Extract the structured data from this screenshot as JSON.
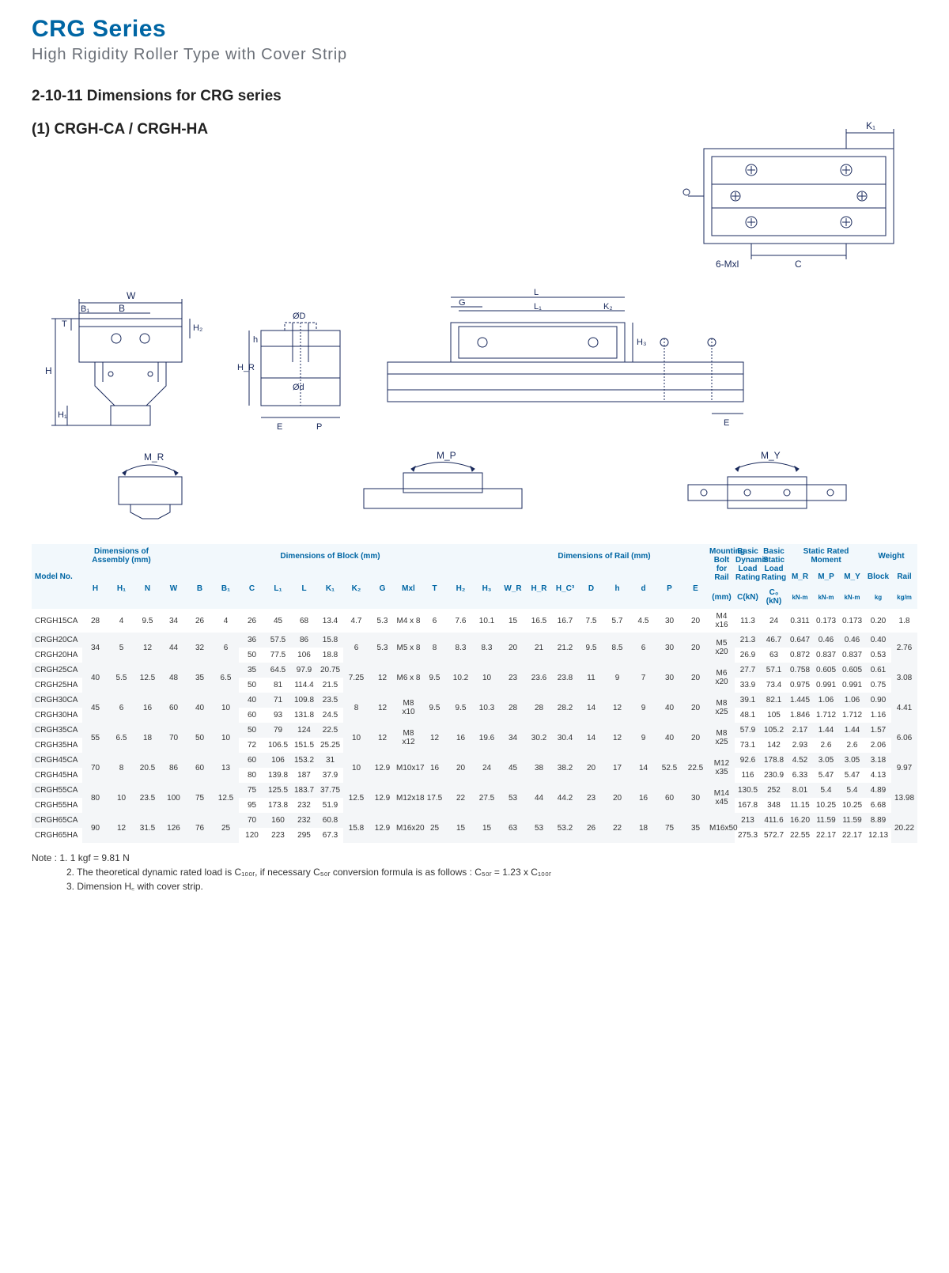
{
  "header": {
    "title": "CRG Series",
    "subtitle": "High Rigidity Roller Type with Cover Strip"
  },
  "section": {
    "heading": "2-10-11 Dimensions for CRG series",
    "sub": "(1) CRGH-CA / CRGH-HA"
  },
  "diagram_labels": {
    "top": {
      "K1": "K₁",
      "C": "C",
      "Mxl": "6-Mxl"
    },
    "front": {
      "W": "W",
      "B1": "B₁",
      "B": "B",
      "H": "H",
      "H1": "H₁",
      "H2": "H₂",
      "T": "T",
      "N": "N"
    },
    "rail_side": {
      "OD": "ØD",
      "Od": "Ød",
      "h": "h",
      "HR": "H_R",
      "HC": "H_C",
      "E": "E",
      "P": "P"
    },
    "side": {
      "G": "G",
      "L": "L",
      "L1": "L₁",
      "K2": "K₂",
      "H3": "H₃",
      "E": "E"
    },
    "moments": {
      "MR": "M_R",
      "MP": "M_P",
      "MY": "M_Y"
    }
  },
  "table": {
    "group_assembly": "Dimensions of Assembly (mm)",
    "group_block": "Dimensions of Block (mm)",
    "group_rail": "Dimensions of Rail (mm)",
    "group_bolt": "Mounting Bolt for Rail",
    "group_dyn": "Basic Dynamic Load Rating",
    "group_stat": "Basic Static Load Rating",
    "group_moment": "Static Rated Moment",
    "group_weight": "Weight",
    "model_no": "Model No.",
    "cols": [
      "H",
      "H₁",
      "N",
      "W",
      "B",
      "B₁",
      "C",
      "L₁",
      "L",
      "K₁",
      "K₂",
      "G",
      "Mxl",
      "T",
      "H₂",
      "H₃",
      "W_R",
      "H_R",
      "H_C³",
      "D",
      "h",
      "d",
      "P",
      "E",
      "(mm)",
      "C(kN)",
      "C₀ (kN)",
      "M_R",
      "M_P",
      "M_Y",
      "Block",
      "Rail"
    ],
    "unit_moment": "kN-m",
    "unit_block": "kg",
    "unit_rail": "kg/m",
    "rows": [
      {
        "model": "CRGH15CA",
        "cells": [
          "28",
          "4",
          "9.5",
          "34",
          "26",
          "4",
          "26",
          "45",
          "68",
          "13.4",
          "4.7",
          "5.3",
          "M4 x 8",
          "6",
          "7.6",
          "10.1",
          "15",
          "16.5",
          "16.7",
          "7.5",
          "5.7",
          "4.5",
          "30",
          "20",
          "M4 x16",
          "11.3",
          "24",
          "0.311",
          "0.173",
          "0.173",
          "0.20",
          "1.8"
        ]
      },
      {
        "model": "CRGH20CA",
        "cells": [
          "34",
          "5",
          "12",
          "44",
          "32",
          "6",
          "36",
          "57.5",
          "86",
          "15.8",
          "6",
          "5.3",
          "M5 x 8",
          "8",
          "8.3",
          "8.3",
          "20",
          "21",
          "21.2",
          "9.5",
          "8.5",
          "6",
          "30",
          "20",
          "M5 x20",
          "21.3",
          "46.7",
          "0.647",
          "0.46",
          "0.46",
          "0.40",
          "2.76"
        ],
        "merge_next": [
          "H",
          "H1",
          "N",
          "W",
          "B",
          "B1",
          "K2",
          "G",
          "Mxl",
          "T",
          "H2",
          "H3",
          "WR",
          "HR",
          "HC",
          "D",
          "h",
          "d",
          "P",
          "E",
          "bolt",
          "rail"
        ]
      },
      {
        "model": "CRGH20HA",
        "cells": [
          "",
          "",
          "",
          "",
          "",
          "",
          "50",
          "77.5",
          "106",
          "18.8",
          "",
          "",
          "",
          "",
          "",
          "",
          "",
          "",
          "",
          "",
          "",
          "",
          "",
          "",
          "",
          "26.9",
          "63",
          "0.872",
          "0.837",
          "0.837",
          "0.53",
          ""
        ]
      },
      {
        "model": "CRGH25CA",
        "cells": [
          "40",
          "5.5",
          "12.5",
          "48",
          "35",
          "6.5",
          "35",
          "64.5",
          "97.9",
          "20.75",
          "7.25",
          "12",
          "M6 x 8",
          "9.5",
          "10.2",
          "10",
          "23",
          "23.6",
          "23.8",
          "11",
          "9",
          "7",
          "30",
          "20",
          "M6 x20",
          "27.7",
          "57.1",
          "0.758",
          "0.605",
          "0.605",
          "0.61",
          "3.08"
        ],
        "merge_next": [
          "H",
          "H1",
          "N",
          "W",
          "B",
          "B1",
          "K2",
          "G",
          "Mxl",
          "T",
          "H2",
          "H3",
          "WR",
          "HR",
          "HC",
          "D",
          "h",
          "d",
          "P",
          "E",
          "bolt",
          "rail"
        ]
      },
      {
        "model": "CRGH25HA",
        "cells": [
          "",
          "",
          "",
          "",
          "",
          "",
          "50",
          "81",
          "114.4",
          "21.5",
          "",
          "",
          "",
          "",
          "",
          "",
          "",
          "",
          "",
          "",
          "",
          "",
          "",
          "",
          "",
          "33.9",
          "73.4",
          "0.975",
          "0.991",
          "0.991",
          "0.75",
          ""
        ]
      },
      {
        "model": "CRGH30CA",
        "cells": [
          "45",
          "6",
          "16",
          "60",
          "40",
          "10",
          "40",
          "71",
          "109.8",
          "23.5",
          "8",
          "12",
          "M8 x10",
          "9.5",
          "9.5",
          "10.3",
          "28",
          "28",
          "28.2",
          "14",
          "12",
          "9",
          "40",
          "20",
          "M8 x25",
          "39.1",
          "82.1",
          "1.445",
          "1.06",
          "1.06",
          "0.90",
          "4.41"
        ],
        "merge_next": [
          "H",
          "H1",
          "N",
          "W",
          "B",
          "B1",
          "K2",
          "G",
          "Mxl",
          "T",
          "H2",
          "H3",
          "WR",
          "HR",
          "HC",
          "D",
          "h",
          "d",
          "P",
          "E",
          "bolt",
          "rail"
        ]
      },
      {
        "model": "CRGH30HA",
        "cells": [
          "",
          "",
          "",
          "",
          "",
          "",
          "60",
          "93",
          "131.8",
          "24.5",
          "",
          "",
          "",
          "",
          "",
          "",
          "",
          "",
          "",
          "",
          "",
          "",
          "",
          "",
          "",
          "48.1",
          "105",
          "1.846",
          "1.712",
          "1.712",
          "1.16",
          ""
        ]
      },
      {
        "model": "CRGH35CA",
        "cells": [
          "55",
          "6.5",
          "18",
          "70",
          "50",
          "10",
          "50",
          "79",
          "124",
          "22.5",
          "10",
          "12",
          "M8 x12",
          "12",
          "16",
          "19.6",
          "34",
          "30.2",
          "30.4",
          "14",
          "12",
          "9",
          "40",
          "20",
          "M8 x25",
          "57.9",
          "105.2",
          "2.17",
          "1.44",
          "1.44",
          "1.57",
          "6.06"
        ],
        "merge_next": [
          "H",
          "H1",
          "N",
          "W",
          "B",
          "B1",
          "K2",
          "G",
          "Mxl",
          "T",
          "H2",
          "H3",
          "WR",
          "HR",
          "HC",
          "D",
          "h",
          "d",
          "P",
          "E",
          "bolt",
          "rail"
        ]
      },
      {
        "model": "CRGH35HA",
        "cells": [
          "",
          "",
          "",
          "",
          "",
          "",
          "72",
          "106.5",
          "151.5",
          "25.25",
          "",
          "",
          "",
          "",
          "",
          "",
          "",
          "",
          "",
          "",
          "",
          "",
          "",
          "",
          "",
          "73.1",
          "142",
          "2.93",
          "2.6",
          "2.6",
          "2.06",
          ""
        ]
      },
      {
        "model": "CRGH45CA",
        "cells": [
          "70",
          "8",
          "20.5",
          "86",
          "60",
          "13",
          "60",
          "106",
          "153.2",
          "31",
          "10",
          "12.9",
          "M10x17",
          "16",
          "20",
          "24",
          "45",
          "38",
          "38.2",
          "20",
          "17",
          "14",
          "52.5",
          "22.5",
          "M12 x35",
          "92.6",
          "178.8",
          "4.52",
          "3.05",
          "3.05",
          "3.18",
          "9.97"
        ],
        "merge_next": [
          "H",
          "H1",
          "N",
          "W",
          "B",
          "B1",
          "K2",
          "G",
          "Mxl",
          "T",
          "H2",
          "H3",
          "WR",
          "HR",
          "HC",
          "D",
          "h",
          "d",
          "P",
          "E",
          "bolt",
          "rail"
        ]
      },
      {
        "model": "CRGH45HA",
        "cells": [
          "",
          "",
          "",
          "",
          "",
          "",
          "80",
          "139.8",
          "187",
          "37.9",
          "",
          "",
          "",
          "",
          "",
          "",
          "",
          "",
          "",
          "",
          "",
          "",
          "",
          "",
          "",
          "116",
          "230.9",
          "6.33",
          "5.47",
          "5.47",
          "4.13",
          ""
        ]
      },
      {
        "model": "CRGH55CA",
        "cells": [
          "80",
          "10",
          "23.5",
          "100",
          "75",
          "12.5",
          "75",
          "125.5",
          "183.7",
          "37.75",
          "12.5",
          "12.9",
          "M12x18",
          "17.5",
          "22",
          "27.5",
          "53",
          "44",
          "44.2",
          "23",
          "20",
          "16",
          "60",
          "30",
          "M14 x45",
          "130.5",
          "252",
          "8.01",
          "5.4",
          "5.4",
          "4.89",
          "13.98"
        ],
        "merge_next": [
          "H",
          "H1",
          "N",
          "W",
          "B",
          "B1",
          "K2",
          "G",
          "Mxl",
          "T",
          "H2",
          "H3",
          "WR",
          "HR",
          "HC",
          "D",
          "h",
          "d",
          "P",
          "E",
          "bolt",
          "rail"
        ]
      },
      {
        "model": "CRGH55HA",
        "cells": [
          "",
          "",
          "",
          "",
          "",
          "",
          "95",
          "173.8",
          "232",
          "51.9",
          "",
          "",
          "",
          "",
          "",
          "",
          "",
          "",
          "",
          "",
          "",
          "",
          "",
          "",
          "",
          "167.8",
          "348",
          "11.15",
          "10.25",
          "10.25",
          "6.68",
          ""
        ]
      },
      {
        "model": "CRGH65CA",
        "cells": [
          "90",
          "12",
          "31.5",
          "126",
          "76",
          "25",
          "70",
          "160",
          "232",
          "60.8",
          "15.8",
          "12.9",
          "M16x20",
          "25",
          "15",
          "15",
          "63",
          "53",
          "53.2",
          "26",
          "22",
          "18",
          "75",
          "35",
          "M16x50",
          "213",
          "411.6",
          "16.20",
          "11.59",
          "11.59",
          "8.89",
          "20.22"
        ],
        "merge_next": [
          "H",
          "H1",
          "N",
          "W",
          "B",
          "B1",
          "K2",
          "G",
          "Mxl",
          "T",
          "H2",
          "H3",
          "WR",
          "HR",
          "HC",
          "D",
          "h",
          "d",
          "P",
          "E",
          "bolt",
          "rail"
        ]
      },
      {
        "model": "CRGH65HA",
        "cells": [
          "",
          "",
          "",
          "",
          "",
          "",
          "120",
          "223",
          "295",
          "67.3",
          "",
          "",
          "",
          "",
          "",
          "",
          "",
          "",
          "",
          "",
          "",
          "",
          "",
          "",
          "",
          "275.3",
          "572.7",
          "22.55",
          "22.17",
          "22.17",
          "12.13",
          ""
        ]
      }
    ]
  },
  "notes": {
    "prefix": "Note :",
    "n1": "1. 1 kgf = 9.81 N",
    "n2": "2. The theoretical dynamic rated load is C₁₀₀ᵣ, if necessary C₅₀ᵣ conversion formula is as follows : C₅₀ᵣ = 1.23 x C₁₀₀ᵣ",
    "n3": "3. Dimension H꜀ with cover strip."
  },
  "colors": {
    "stroke": "#1a2a5c",
    "headblue": "#0066a4",
    "thbg": "#f2f8fc",
    "altrow": "#f4f6f8"
  }
}
